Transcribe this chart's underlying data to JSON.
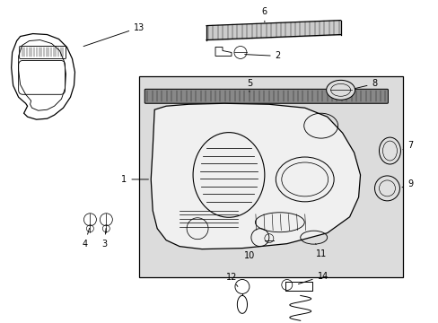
{
  "background_color": "#ffffff",
  "line_color": "#000000",
  "panel_bg": "#dcdcdc",
  "door_trim_bg": "#f0f0f0",
  "strip_bg": "#888888"
}
